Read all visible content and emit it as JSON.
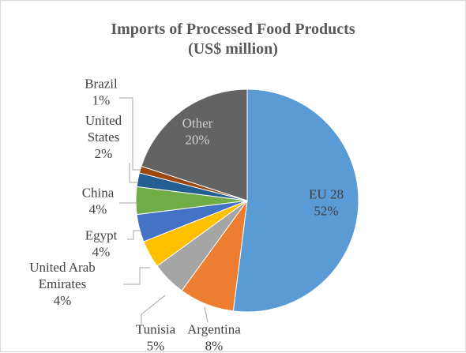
{
  "chart_data": {
    "type": "pie",
    "title": "Imports of Processed Food Products",
    "subtitle": "(US$ million)",
    "slices": [
      {
        "label": "EU 28",
        "value": 52,
        "display": "52%",
        "color": "#5b9bd5"
      },
      {
        "label": "Argentina",
        "value": 8,
        "display": "8%",
        "color": "#ed7d31"
      },
      {
        "label": "Tunisia",
        "value": 5,
        "display": "5%",
        "color": "#a5a5a5"
      },
      {
        "label": "United Arab Emirates",
        "value": 4,
        "display": "4%",
        "color": "#ffc000"
      },
      {
        "label": "Egypt",
        "value": 4,
        "display": "4%",
        "color": "#4472c4"
      },
      {
        "label": "China",
        "value": 4,
        "display": "4%",
        "color": "#70ad47"
      },
      {
        "label": "United States",
        "value": 2,
        "display": "2%",
        "color": "#255e91"
      },
      {
        "label": "Brazil",
        "value": 1,
        "display": "1%",
        "color": "#9e480e"
      },
      {
        "label": "Other",
        "value": 20,
        "display": "20%",
        "color": "#636363"
      }
    ]
  }
}
